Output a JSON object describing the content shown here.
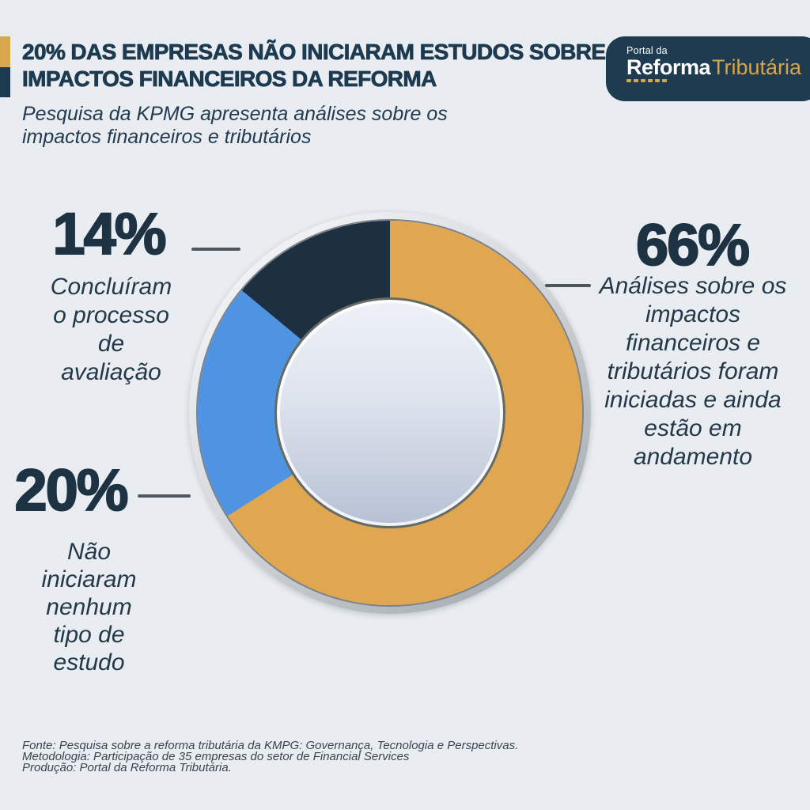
{
  "theme": {
    "background": "#E9EDF1",
    "navy": "#1E3A50",
    "gold": "#D9A74C",
    "text_dark": "#1D3242",
    "connector_gray": "#4F565E"
  },
  "header": {
    "title_line1": "20% DAS EMPRESAS NÃO INICIARAM ESTUDOS SOBRE",
    "title_line2": "IMPACTOS FINANCEIROS DA REFORMA",
    "subtitle_line1": "Pesquisa da KPMG apresenta análises sobre os",
    "subtitle_line2": "impactos financeiros e tributários"
  },
  "logo": {
    "small_text": "Portal da",
    "brand_bold": "Reforma",
    "brand_light": "Tributária",
    "background": "#1E3B4F",
    "gold": "#D9A445"
  },
  "chart_data": {
    "type": "pie",
    "donut": true,
    "title": "20% das empresas não iniciaram estudos sobre impactos financeiros da reforma",
    "values": [
      66,
      20,
      14
    ],
    "unit": "%",
    "categories": [
      "Análises sobre os impactos financeiros e tributários foram iniciadas e ainda estão em andamento",
      "Não iniciaram nenhum tipo de estudo",
      "Concluíram o processo de avaliação"
    ],
    "colors": [
      "#E0A650",
      "#4E94E2",
      "#1C3040"
    ],
    "start_angle_deg": 0,
    "direction": "clockwise",
    "legend_position": "callouts",
    "center_fill": "silver gradient disc"
  },
  "callouts": [
    {
      "pct": "66%",
      "lines": [
        "Análises sobre os",
        "impactos",
        "financeiros e",
        "tributários foram",
        "iniciadas e ainda",
        "estão em",
        "andamento"
      ]
    },
    {
      "pct": "20%",
      "lines": [
        "Não",
        "iniciaram",
        "nenhum",
        "tipo de",
        "estudo"
      ]
    },
    {
      "pct": "14%",
      "lines": [
        "Concluíram",
        "o processo",
        "de",
        "avaliação"
      ]
    }
  ],
  "footer": {
    "lines": [
      "Fonte: Pesquisa sobre a reforma tributária da KMPG: Governança, Tecnologia e Perspectivas.",
      "Metodologia: Participação de 35 empresas do setor de Financial Services",
      "Produção: Portal da Reforma Tributária."
    ]
  }
}
